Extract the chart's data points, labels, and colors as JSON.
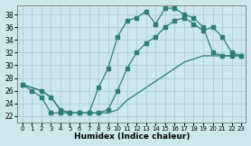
{
  "background_color": "#cce8ec",
  "grid_color": "#aacdd4",
  "line_color": "#2d7f75",
  "xlabel": "Humidex (Indice chaleur)",
  "xlim": [
    -0.5,
    23.5
  ],
  "ylim": [
    21.0,
    39.5
  ],
  "yticks": [
    22,
    24,
    26,
    28,
    30,
    32,
    34,
    36,
    38
  ],
  "xticks": [
    0,
    1,
    2,
    3,
    4,
    5,
    6,
    7,
    8,
    9,
    10,
    11,
    12,
    13,
    14,
    15,
    16,
    17,
    18,
    19,
    20,
    21,
    22,
    23
  ],
  "curve1_x": [
    0,
    1,
    2,
    3,
    4,
    5,
    6,
    7,
    8,
    9,
    10,
    11,
    12,
    13,
    14,
    15,
    16,
    17,
    18,
    19,
    20,
    21,
    22,
    23
  ],
  "curve1_y": [
    27,
    26,
    25,
    22.5,
    22.5,
    22.5,
    22.5,
    22.5,
    26.5,
    29.5,
    34.5,
    37.0,
    37.5,
    38.5,
    36.5,
    39.0,
    39.0,
    38.0,
    37.5,
    36.0,
    32.0,
    31.5,
    31.5,
    31.5
  ],
  "curve2_x": [
    0,
    2,
    3,
    4,
    5,
    6,
    7,
    8,
    9,
    10,
    11,
    12,
    13,
    14,
    15,
    16,
    17,
    18,
    19,
    20,
    21,
    22,
    23
  ],
  "curve2_y": [
    27,
    26,
    25,
    23,
    22.5,
    22.5,
    22.5,
    22.5,
    22.5,
    23.0,
    24.5,
    25.5,
    26.5,
    27.5,
    28.5,
    29.5,
    30.5,
    31.0,
    31.5,
    31.5,
    31.5,
    31.5,
    31.5
  ],
  "curve3_x": [
    0,
    2,
    3,
    4,
    5,
    6,
    7,
    8,
    9,
    10,
    11,
    12,
    13,
    14,
    15,
    16,
    17,
    18,
    19,
    20,
    21,
    22,
    23
  ],
  "curve3_y": [
    27,
    26,
    25,
    23,
    22.5,
    22.5,
    22.5,
    22.5,
    23.0,
    26.0,
    29.5,
    32.0,
    33.5,
    34.5,
    36.0,
    37.0,
    37.5,
    36.5,
    35.5,
    36.0,
    34.5,
    32.0,
    31.5
  ]
}
